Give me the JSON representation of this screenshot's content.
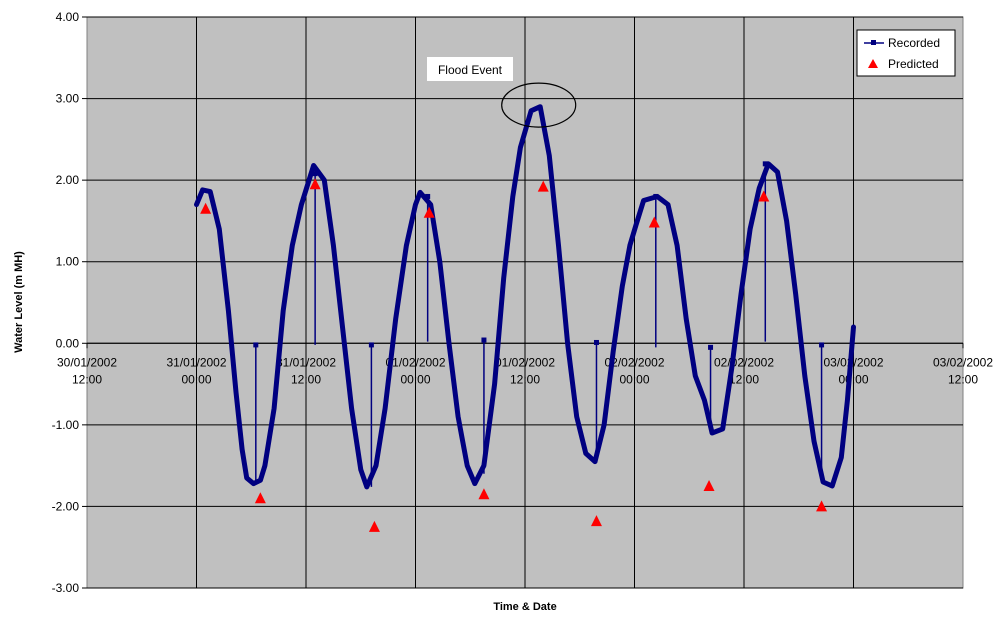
{
  "chart_data": {
    "type": "line",
    "xlabel": "Time & Date",
    "ylabel": "Water Level (m MH)",
    "ylim": [
      -3,
      4
    ],
    "y_ticks": [
      "4.00",
      "3.00",
      "2.00",
      "1.00",
      "0.00",
      "-1.00",
      "-2.00",
      "-3.00"
    ],
    "x_range": [
      "2002-01-30T12:00",
      "2002-02-03T12:00"
    ],
    "x_ticks": [
      {
        "line1": "30/01/2002",
        "line2": "12:00",
        "t": "2002-01-30T12:00"
      },
      {
        "line1": "31/01/2002",
        "line2": "00:00",
        "t": "2002-01-31T00:00"
      },
      {
        "line1": "31/01/2002",
        "line2": "12:00",
        "t": "2002-01-31T12:00"
      },
      {
        "line1": "01/02/2002",
        "line2": "00:00",
        "t": "2002-02-01T00:00"
      },
      {
        "line1": "01/02/2002",
        "line2": "12:00",
        "t": "2002-02-01T12:00"
      },
      {
        "line1": "02/02/2002",
        "line2": "00:00",
        "t": "2002-02-02T00:00"
      },
      {
        "line1": "02/02/2002",
        "line2": "12:00",
        "t": "2002-02-02T12:00"
      },
      {
        "line1": "03/02/2002",
        "line2": "00:00",
        "t": "2002-02-03T00:00"
      },
      {
        "line1": "03/02/2002",
        "line2": "12:00",
        "t": "2002-02-03T12:00"
      }
    ],
    "grid": true,
    "legend_position": "top-right",
    "series": [
      {
        "name": "Recorded",
        "color": "#000080",
        "points": [
          [
            "2002-01-31T00:00",
            1.7
          ],
          [
            "2002-01-31T00:40",
            1.88
          ],
          [
            "2002-01-31T01:30",
            1.86
          ],
          [
            "2002-01-31T02:30",
            1.4
          ],
          [
            "2002-01-31T03:30",
            0.4
          ],
          [
            "2002-01-31T04:20",
            -0.6
          ],
          [
            "2002-01-31T05:00",
            -1.3
          ],
          [
            "2002-01-31T05:30",
            -1.65
          ],
          [
            "2002-01-31T06:15",
            -1.72
          ],
          [
            "2002-01-31T07:00",
            -1.68
          ],
          [
            "2002-01-31T07:30",
            -1.5
          ],
          [
            "2002-01-31T08:30",
            -0.8
          ],
          [
            "2002-01-31T09:30",
            0.4
          ],
          [
            "2002-01-31T10:30",
            1.2
          ],
          [
            "2002-01-31T11:30",
            1.7
          ],
          [
            "2002-01-31T12:50",
            2.18
          ],
          [
            "2002-01-31T14:00",
            2.0
          ],
          [
            "2002-01-31T15:00",
            1.2
          ],
          [
            "2002-01-31T16:00",
            0.2
          ],
          [
            "2002-01-31T17:00",
            -0.8
          ],
          [
            "2002-01-31T18:00",
            -1.55
          ],
          [
            "2002-01-31T18:40",
            -1.76
          ],
          [
            "2002-01-31T19:40",
            -1.5
          ],
          [
            "2002-01-31T20:40",
            -0.8
          ],
          [
            "2002-01-31T21:50",
            0.3
          ],
          [
            "2002-01-31T23:00",
            1.2
          ],
          [
            "2002-02-01T00:00",
            1.7
          ],
          [
            "2002-02-01T00:30",
            1.85
          ],
          [
            "2002-02-01T01:40",
            1.7
          ],
          [
            "2002-02-01T02:40",
            1.0
          ],
          [
            "2002-02-01T03:40",
            0.0
          ],
          [
            "2002-02-01T04:40",
            -0.9
          ],
          [
            "2002-02-01T05:40",
            -1.5
          ],
          [
            "2002-02-01T06:30",
            -1.72
          ],
          [
            "2002-02-01T07:30",
            -1.5
          ],
          [
            "2002-02-01T08:40",
            -0.5
          ],
          [
            "2002-02-01T09:40",
            0.8
          ],
          [
            "2002-02-01T10:40",
            1.8
          ],
          [
            "2002-02-01T11:30",
            2.4
          ],
          [
            "2002-02-01T12:40",
            2.85
          ],
          [
            "2002-02-01T13:40",
            2.9
          ],
          [
            "2002-02-01T14:40",
            2.3
          ],
          [
            "2002-02-01T15:40",
            1.2
          ],
          [
            "2002-02-01T16:40",
            0.0
          ],
          [
            "2002-02-01T17:40",
            -0.9
          ],
          [
            "2002-02-01T18:40",
            -1.35
          ],
          [
            "2002-02-01T19:40",
            -1.45
          ],
          [
            "2002-02-01T20:40",
            -1.0
          ],
          [
            "2002-02-01T21:40",
            -0.1
          ],
          [
            "2002-02-01T22:40",
            0.7
          ],
          [
            "2002-02-01T23:30",
            1.2
          ],
          [
            "2002-02-02T00:10",
            1.45
          ],
          [
            "2002-02-02T01:00",
            1.75
          ],
          [
            "2002-02-02T02:30",
            1.8
          ],
          [
            "2002-02-02T03:40",
            1.7
          ],
          [
            "2002-02-02T04:40",
            1.2
          ],
          [
            "2002-02-02T05:40",
            0.3
          ],
          [
            "2002-02-02T06:40",
            -0.4
          ],
          [
            "2002-02-02T07:40",
            -0.7
          ],
          [
            "2002-02-02T08:30",
            -1.1
          ],
          [
            "2002-02-02T09:40",
            -1.05
          ],
          [
            "2002-02-02T10:40",
            -0.3
          ],
          [
            "2002-02-02T11:40",
            0.6
          ],
          [
            "2002-02-02T12:40",
            1.4
          ],
          [
            "2002-02-02T13:40",
            1.9
          ],
          [
            "2002-02-02T14:40",
            2.2
          ],
          [
            "2002-02-02T15:40",
            2.1
          ],
          [
            "2002-02-02T16:40",
            1.5
          ],
          [
            "2002-02-02T17:40",
            0.6
          ],
          [
            "2002-02-02T18:40",
            -0.4
          ],
          [
            "2002-02-02T19:40",
            -1.2
          ],
          [
            "2002-02-02T20:40",
            -1.7
          ],
          [
            "2002-02-02T21:40",
            -1.75
          ],
          [
            "2002-02-02T22:40",
            -1.4
          ],
          [
            "2002-02-02T23:20",
            -0.7
          ],
          [
            "2002-02-03T00:00",
            0.2
          ]
        ]
      },
      {
        "name": "Predicted",
        "color": "#ff0000",
        "marker": "triangle",
        "points": [
          [
            "2002-01-31T01:00",
            1.65
          ],
          [
            "2002-01-31T07:00",
            -1.9
          ],
          [
            "2002-01-31T13:00",
            1.95
          ],
          [
            "2002-01-31T19:30",
            -2.25
          ],
          [
            "2002-02-01T01:30",
            1.6
          ],
          [
            "2002-02-01T07:30",
            -1.85
          ],
          [
            "2002-02-01T14:00",
            1.92
          ],
          [
            "2002-02-01T19:50",
            -2.18
          ],
          [
            "2002-02-02T02:10",
            1.48
          ],
          [
            "2002-02-02T08:10",
            -1.75
          ],
          [
            "2002-02-02T14:10",
            1.8
          ],
          [
            "2002-02-02T20:30",
            -2.0
          ]
        ]
      }
    ],
    "stems": [
      {
        "t": "2002-01-31T06:30",
        "top": -0.02,
        "bottom": -1.7
      },
      {
        "t": "2002-01-31T13:00",
        "top": 2.08,
        "bottom": -0.02
      },
      {
        "t": "2002-01-31T19:10",
        "top": -0.02,
        "bottom": -1.76
      },
      {
        "t": "2002-02-01T01:20",
        "top": 1.8,
        "bottom": 0.02
      },
      {
        "t": "2002-02-01T07:30",
        "top": 0.04,
        "bottom": -1.6
      },
      {
        "t": "2002-02-01T19:50",
        "top": 0.01,
        "bottom": -1.4
      },
      {
        "t": "2002-02-02T02:20",
        "top": 1.8,
        "bottom": -0.05
      },
      {
        "t": "2002-02-02T08:20",
        "top": -0.05,
        "bottom": -1.05
      },
      {
        "t": "2002-02-02T14:20",
        "top": 2.2,
        "bottom": 0.02
      },
      {
        "t": "2002-02-02T20:30",
        "top": -0.02,
        "bottom": -1.7
      }
    ],
    "annotations": [
      {
        "text": "Flood Event",
        "target_t": "2002-02-01T13:30",
        "target_y": 2.92
      }
    ]
  }
}
